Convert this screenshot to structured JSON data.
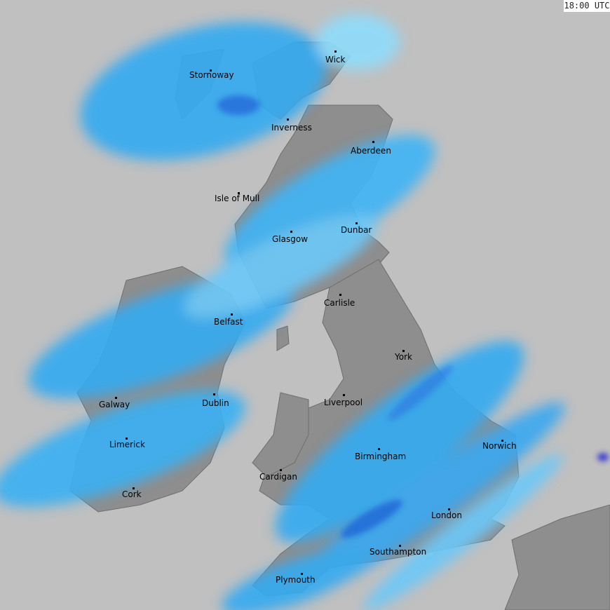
{
  "timestamp": "18:00 UTC",
  "colors": {
    "sea": "#c0c0c0",
    "land": "#8e8e8e",
    "rain_light": "#9ee8ff",
    "rain_medium": "#35aaf0",
    "rain_heavy": "#1e6fe0",
    "rain_intense": "#3030d0"
  },
  "cities": [
    {
      "name": "Wick"
    },
    {
      "name": "Stornoway"
    },
    {
      "name": "Inverness"
    },
    {
      "name": "Aberdeen"
    },
    {
      "name": "Isle of Mull"
    },
    {
      "name": "Dunbar"
    },
    {
      "name": "Glasgow"
    },
    {
      "name": "Carlisle"
    },
    {
      "name": "Belfast"
    },
    {
      "name": "York"
    },
    {
      "name": "Galway"
    },
    {
      "name": "Dublin"
    },
    {
      "name": "Liverpool"
    },
    {
      "name": "Norwich"
    },
    {
      "name": "Limerick"
    },
    {
      "name": "Birmingham"
    },
    {
      "name": "Cardigan"
    },
    {
      "name": "Cork"
    },
    {
      "name": "London"
    },
    {
      "name": "Southampton"
    },
    {
      "name": "Plymouth"
    }
  ]
}
